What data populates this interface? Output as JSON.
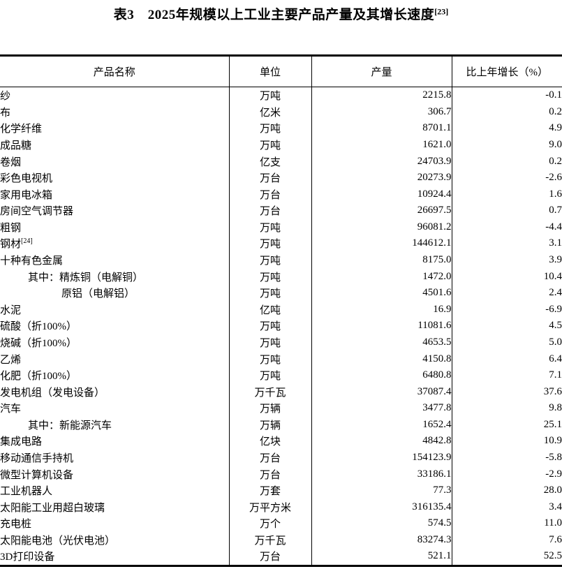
{
  "title": {
    "text": "表3　2025年规模以上工业主要产品产量及其增长速度",
    "sup": "[23]"
  },
  "table": {
    "headers": [
      "产品名称",
      "单位",
      "产量",
      "比上年增长（%）"
    ],
    "rows": [
      {
        "name": "纱",
        "indent": 0,
        "unit": "万吨",
        "output": "2215.8",
        "growth": "-0.1"
      },
      {
        "name": "布",
        "indent": 0,
        "unit": "亿米",
        "output": "306.7",
        "growth": "0.2"
      },
      {
        "name": "化学纤维",
        "indent": 0,
        "unit": "万吨",
        "output": "8701.1",
        "growth": "4.9"
      },
      {
        "name": "成品糖",
        "indent": 0,
        "unit": "万吨",
        "output": "1621.0",
        "growth": "9.0"
      },
      {
        "name": "卷烟",
        "indent": 0,
        "unit": "亿支",
        "output": "24703.9",
        "growth": "0.2"
      },
      {
        "name": "彩色电视机",
        "indent": 0,
        "unit": "万台",
        "output": "20273.9",
        "growth": "-2.6"
      },
      {
        "name": "家用电冰箱",
        "indent": 0,
        "unit": "万台",
        "output": "10924.4",
        "growth": "1.6"
      },
      {
        "name": "房间空气调节器",
        "indent": 0,
        "unit": "万台",
        "output": "26697.5",
        "growth": "0.7"
      },
      {
        "name": "粗钢",
        "indent": 0,
        "unit": "万吨",
        "output": "96081.2",
        "growth": "-4.4"
      },
      {
        "name": "钢材",
        "sup": "[24]",
        "indent": 0,
        "unit": "万吨",
        "output": "144612.1",
        "growth": "3.1"
      },
      {
        "name": "十种有色金属",
        "indent": 0,
        "unit": "万吨",
        "output": "8175.0",
        "growth": "3.9"
      },
      {
        "name": "其中：精炼铜（电解铜）",
        "indent": 1,
        "unit": "万吨",
        "output": "1472.0",
        "growth": "10.4"
      },
      {
        "name": "原铝（电解铝）",
        "indent": 2,
        "unit": "万吨",
        "output": "4501.6",
        "growth": "2.4"
      },
      {
        "name": "水泥",
        "indent": 0,
        "unit": "亿吨",
        "output": "16.9",
        "growth": "-6.9"
      },
      {
        "name": "硫酸（折100%）",
        "indent": 0,
        "unit": "万吨",
        "output": "11081.6",
        "growth": "4.5"
      },
      {
        "name": "烧碱（折100%）",
        "indent": 0,
        "unit": "万吨",
        "output": "4653.5",
        "growth": "5.0"
      },
      {
        "name": "乙烯",
        "indent": 0,
        "unit": "万吨",
        "output": "4150.8",
        "growth": "6.4"
      },
      {
        "name": "化肥（折100%）",
        "indent": 0,
        "unit": "万吨",
        "output": "6480.8",
        "growth": "7.1"
      },
      {
        "name": "发电机组（发电设备）",
        "indent": 0,
        "unit": "万千瓦",
        "output": "37087.4",
        "growth": "37.6"
      },
      {
        "name": "汽车",
        "indent": 0,
        "unit": "万辆",
        "output": "3477.8",
        "growth": "9.8"
      },
      {
        "name": "其中：新能源汽车",
        "indent": 1,
        "unit": "万辆",
        "output": "1652.4",
        "growth": "25.1"
      },
      {
        "name": "集成电路",
        "indent": 0,
        "unit": "亿块",
        "output": "4842.8",
        "growth": "10.9"
      },
      {
        "name": "移动通信手持机",
        "indent": 0,
        "unit": "万台",
        "output": "154123.9",
        "growth": "-5.8"
      },
      {
        "name": "微型计算机设备",
        "indent": 0,
        "unit": "万台",
        "output": "33186.1",
        "growth": "-2.9"
      },
      {
        "name": "工业机器人",
        "indent": 0,
        "unit": "万套",
        "output": "77.3",
        "growth": "28.0"
      },
      {
        "name": "太阳能工业用超白玻璃",
        "indent": 0,
        "unit": "万平方米",
        "output": "316135.4",
        "growth": "3.4"
      },
      {
        "name": "充电桩",
        "indent": 0,
        "unit": "万个",
        "output": "574.5",
        "growth": "11.0"
      },
      {
        "name": "太阳能电池（光伏电池）",
        "indent": 0,
        "unit": "万千瓦",
        "output": "83274.3",
        "growth": "7.6"
      },
      {
        "name": "3D打印设备",
        "indent": 0,
        "unit": "万台",
        "output": "521.1",
        "growth": "52.5"
      }
    ]
  },
  "colors": {
    "text": "#000000",
    "background": "#ffffff",
    "border": "#000000"
  }
}
